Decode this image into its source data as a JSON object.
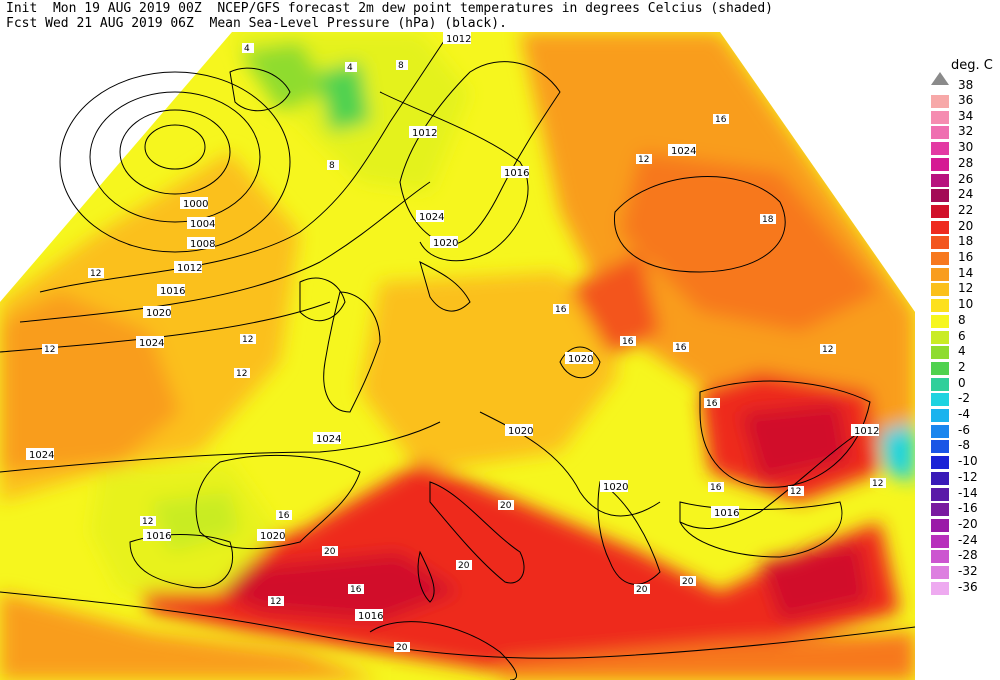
{
  "header": {
    "line1": "Init  Mon 19 AUG 2019 00Z  NCEP/GFS forecast 2m dew point temperatures in degrees Celcius (shaded)",
    "line2": "Fcst Wed 21 AUG 2019 06Z  Mean Sea-Level Pressure (hPa) (black)."
  },
  "legend": {
    "title": "deg. C",
    "top_label": "38",
    "entries": [
      {
        "label": "36",
        "color": "#f7a8a8"
      },
      {
        "label": "34",
        "color": "#f58cb0"
      },
      {
        "label": "32",
        "color": "#ef6fb0"
      },
      {
        "label": "30",
        "color": "#e33aa3"
      },
      {
        "label": "28",
        "color": "#d51a93"
      },
      {
        "label": "26",
        "color": "#b8127e"
      },
      {
        "label": "24",
        "color": "#a30a55"
      },
      {
        "label": "22",
        "color": "#d1102a"
      },
      {
        "label": "20",
        "color": "#ee2a1e"
      },
      {
        "label": "18",
        "color": "#f3551e"
      },
      {
        "label": "16",
        "color": "#f7781d"
      },
      {
        "label": "14",
        "color": "#f99d1e"
      },
      {
        "label": "12",
        "color": "#fbc01c"
      },
      {
        "label": "10",
        "color": "#fde01c"
      },
      {
        "label": "8",
        "color": "#f6f61e"
      },
      {
        "label": "6",
        "color": "#c9ec24"
      },
      {
        "label": "4",
        "color": "#8fdc2f"
      },
      {
        "label": "2",
        "color": "#4fd24f"
      },
      {
        "label": "0",
        "color": "#2fcf9a"
      },
      {
        "label": "-2",
        "color": "#1fd3e0"
      },
      {
        "label": "-4",
        "color": "#1ab3ee"
      },
      {
        "label": "-6",
        "color": "#1a86ee"
      },
      {
        "label": "-8",
        "color": "#1a55e6"
      },
      {
        "label": "-10",
        "color": "#1a22d6"
      },
      {
        "label": "-12",
        "color": "#3a1ab8"
      },
      {
        "label": "-14",
        "color": "#5a1aa8"
      },
      {
        "label": "-16",
        "color": "#7a1aa0"
      },
      {
        "label": "-20",
        "color": "#9a1aa8"
      },
      {
        "label": "-24",
        "color": "#b830bc"
      },
      {
        "label": "-28",
        "color": "#cc55d0"
      },
      {
        "label": "-32",
        "color": "#dd7fe0"
      },
      {
        "label": "-36",
        "color": "#eeaaf0"
      }
    ]
  },
  "isobar_labels": [
    "1012",
    "1012",
    "1016",
    "1020",
    "1024",
    "1000",
    "1004",
    "1008",
    "1012",
    "1016",
    "1020",
    "1024",
    "1024",
    "1024",
    "1020",
    "1020",
    "1020",
    "1016",
    "1012",
    "1016",
    "1020",
    "1024",
    "1016"
  ],
  "dewpoint_labels": [
    "4",
    "4",
    "8",
    "8",
    "16",
    "12",
    "12",
    "12",
    "12",
    "16",
    "16",
    "16",
    "16",
    "18",
    "12",
    "12",
    "16",
    "12",
    "12",
    "20",
    "20",
    "20",
    "20",
    "16",
    "12",
    "12",
    "16",
    "20",
    "20"
  ]
}
